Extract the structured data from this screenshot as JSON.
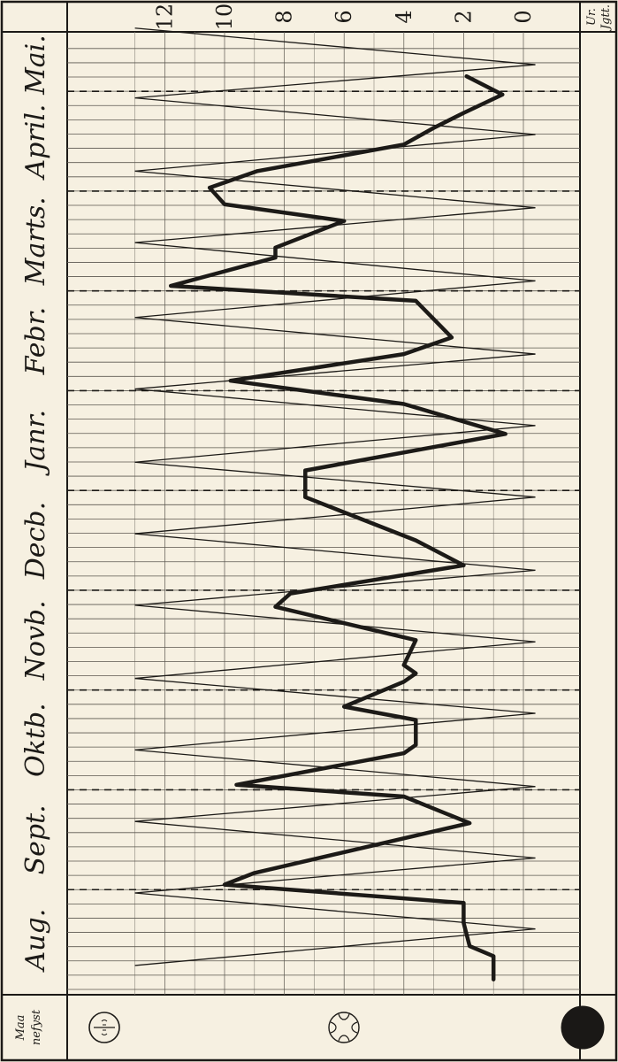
{
  "chart_data": {
    "type": "line",
    "orientation": "rotated-90",
    "y_axis_title": [
      "Ur.",
      "Jgtt."
    ],
    "moon_column_title": [
      "Maa",
      "nefyst"
    ],
    "months": [
      "Aug.",
      "Sept.",
      "Oktb.",
      "Novb.",
      "Decb.",
      "Janr.",
      "Febr.",
      "Marts.",
      "April.",
      "Mai."
    ],
    "month_bounds": [
      0,
      3,
      6,
      9,
      12,
      15,
      18,
      21,
      24,
      27,
      28.6
    ],
    "y_ticks": [
      "0",
      "2",
      "4",
      "6",
      "8",
      "10",
      "12"
    ],
    "ylim": [
      -0.6,
      13.9
    ],
    "moon_cycle": {
      "phases": [
        "full",
        "last-quarter",
        "new",
        "first-quarter"
      ],
      "peak_value": 13,
      "trough_value": -0.4,
      "peaks_at": [
        0.72,
        2.9,
        5.05,
        7.2,
        9.35,
        11.55,
        13.7,
        15.85,
        18.05,
        20.2,
        22.45,
        24.6,
        26.8,
        28.9
      ],
      "troughs_at": [
        1.82,
        3.95,
        6.1,
        8.3,
        10.45,
        12.6,
        14.8,
        16.95,
        19.1,
        21.3,
        23.5,
        25.7,
        27.8
      ]
    },
    "series": [
      {
        "style": "bold",
        "points": [
          [
            0.3,
            1.0
          ],
          [
            1.0,
            1.0
          ],
          [
            1.3,
            1.8
          ],
          [
            2.0,
            2.0
          ],
          [
            2.3,
            2.0
          ],
          [
            2.6,
            2.0
          ],
          [
            3.15,
            10.0
          ],
          [
            3.5,
            9.0
          ],
          [
            5.0,
            1.8
          ],
          [
            5.8,
            4.0
          ],
          [
            6.15,
            9.6
          ],
          [
            7.1,
            4.0
          ],
          [
            7.35,
            3.6
          ],
          [
            8.1,
            3.6
          ],
          [
            8.5,
            6.0
          ],
          [
            9.25,
            4.0
          ],
          [
            9.5,
            3.6
          ],
          [
            9.75,
            4.0
          ],
          [
            10.5,
            3.6
          ],
          [
            11.5,
            8.3
          ],
          [
            11.9,
            7.8
          ],
          [
            12.75,
            2.0
          ],
          [
            13.5,
            3.6
          ],
          [
            14.8,
            7.3
          ],
          [
            15.6,
            7.3
          ],
          [
            16.7,
            0.6
          ],
          [
            17.6,
            4.0
          ],
          [
            18.3,
            9.8
          ],
          [
            19.1,
            4.0
          ],
          [
            19.6,
            2.4
          ],
          [
            20.7,
            3.6
          ],
          [
            21.15,
            11.8
          ],
          [
            22.0,
            8.3
          ],
          [
            22.3,
            8.3
          ],
          [
            23.1,
            6.0
          ],
          [
            23.6,
            10.0
          ],
          [
            24.1,
            10.5
          ],
          [
            24.6,
            8.9
          ],
          [
            25.4,
            4.0
          ],
          [
            25.9,
            3.0
          ],
          [
            26.35,
            2.0
          ],
          [
            26.9,
            0.7
          ],
          [
            27.45,
            1.9
          ]
        ]
      }
    ]
  }
}
